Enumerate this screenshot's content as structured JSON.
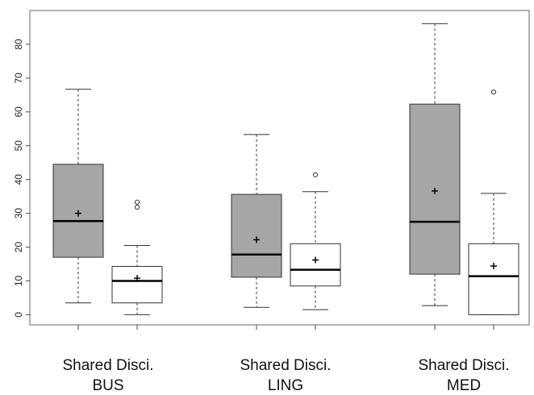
{
  "chart_data": {
    "type": "boxplot",
    "title": "",
    "xlabel": "",
    "ylabel": "",
    "ylim": [
      -3,
      90
    ],
    "yticks": [
      0,
      10,
      20,
      30,
      40,
      50,
      60,
      70,
      80
    ],
    "grid": false,
    "colors": {
      "shared": "#a6a6a6",
      "disci": "#ffffff",
      "stroke": "#333333"
    },
    "groups": [
      {
        "label_line1": "Shared Disci.",
        "label_line2": "BUS",
        "boxes": [
          {
            "kind": "shared",
            "whisker_low": 3.5,
            "q1": 17,
            "median": 27.7,
            "q3": 44.5,
            "whisker_high": 66.7,
            "mean": 30,
            "outliers": []
          },
          {
            "kind": "disci",
            "whisker_low": 0,
            "q1": 3.5,
            "median": 10,
            "q3": 14.3,
            "whisker_high": 20.5,
            "mean": 10.8,
            "outliers": [
              31.8,
              33.3
            ]
          }
        ]
      },
      {
        "label_line1": "Shared Disci.",
        "label_line2": "LING",
        "boxes": [
          {
            "kind": "shared",
            "whisker_low": 2.2,
            "q1": 11.1,
            "median": 17.8,
            "q3": 35.6,
            "whisker_high": 53.3,
            "mean": 22.2,
            "outliers": []
          },
          {
            "kind": "disci",
            "whisker_low": 1.5,
            "q1": 8.5,
            "median": 13.3,
            "q3": 21,
            "whisker_high": 36.4,
            "mean": 16.2,
            "outliers": [
              41.4
            ]
          }
        ]
      },
      {
        "label_line1": "Shared Disci.",
        "label_line2": "MED",
        "boxes": [
          {
            "kind": "shared",
            "whisker_low": 2.7,
            "q1": 12,
            "median": 27.5,
            "q3": 62.3,
            "whisker_high": 86.1,
            "mean": 36.6,
            "outliers": []
          },
          {
            "kind": "disci",
            "whisker_low": 0,
            "q1": 0,
            "median": 11.4,
            "q3": 21,
            "whisker_high": 35.9,
            "mean": 14.4,
            "outliers": [
              65.9
            ]
          }
        ]
      }
    ]
  }
}
